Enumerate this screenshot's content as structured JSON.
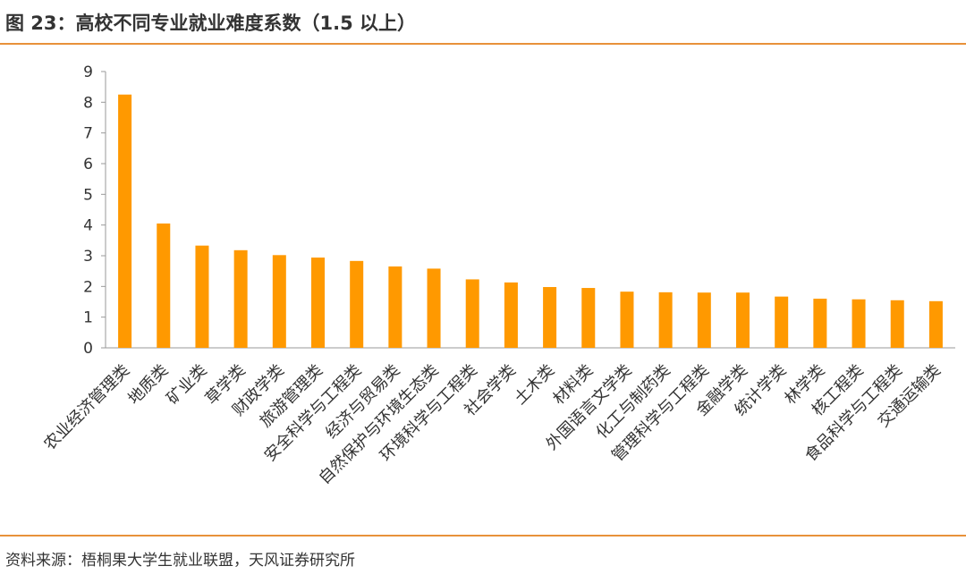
{
  "header": {
    "title": "图 23：高校不同专业就业难度系数（1.5 以上）"
  },
  "footer": {
    "source": "资料来源：梧桐果大学生就业联盟，天风证券研究所"
  },
  "colors": {
    "bar": "#FF9900",
    "accent": "#E8913A",
    "axis": "#999999",
    "text": "#333333"
  },
  "chart_data": {
    "type": "bar",
    "title": "",
    "xlabel": "",
    "ylabel": "",
    "ylim": [
      0,
      9
    ],
    "yticks": [
      "0",
      "1",
      "2",
      "3",
      "4",
      "5",
      "6",
      "7",
      "8",
      "9"
    ],
    "categories": [
      "农业经济管理类",
      "地质类",
      "矿业类",
      "草学类",
      "财政学类",
      "旅游管理类",
      "安全科学与工程类",
      "经济与贸易类",
      "自然保护与环境生态类",
      "环境科学与工程类",
      "社会学类",
      "土木类",
      "材料类",
      "外国语言文学类",
      "化工与制药类",
      "管理科学与工程类",
      "金融学类",
      "统计学类",
      "林学类",
      "核工程类",
      "食品科学与工程类",
      "交通运输类"
    ],
    "values": [
      8.25,
      4.05,
      3.33,
      3.18,
      3.02,
      2.94,
      2.83,
      2.65,
      2.58,
      2.23,
      2.13,
      1.98,
      1.95,
      1.83,
      1.81,
      1.8,
      1.8,
      1.67,
      1.6,
      1.58,
      1.55,
      1.52
    ]
  }
}
